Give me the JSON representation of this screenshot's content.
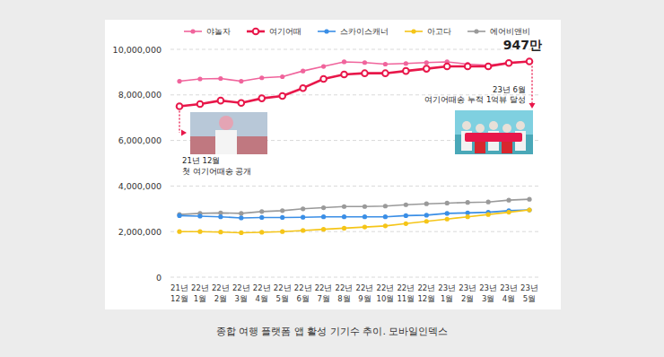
{
  "chart_data": {
    "type": "line",
    "title": "종합 여행 플랫폼 앱 활성 기기수 추이. 모바일인덱스",
    "categories": [
      "21년 12월",
      "22년 1월",
      "22년 2월",
      "22년 3월",
      "22년 4월",
      "22년 5월",
      "22년 6월",
      "22년 7월",
      "22년 8월",
      "22년 9월",
      "22년 10월",
      "22년 11월",
      "22년 12월",
      "23년 1월",
      "23년 2월",
      "23년 3월",
      "23년 4월",
      "23년 5월"
    ],
    "series": [
      {
        "name": "야놀자",
        "color": "#f0649c",
        "marker": "circle",
        "line_style": "solid",
        "values": [
          8600000,
          8700000,
          8720000,
          8600000,
          8750000,
          8800000,
          9050000,
          9250000,
          9450000,
          9420000,
          9350000,
          9380000,
          9420000,
          9450000,
          9350000,
          9300000,
          9420000,
          9470000
        ]
      },
      {
        "name": "여기어때",
        "color": "#e8174a",
        "marker": "circle-open",
        "line_style": "solid",
        "values": [
          7500000,
          7600000,
          7750000,
          7650000,
          7850000,
          7950000,
          8300000,
          8700000,
          8900000,
          8950000,
          8950000,
          9050000,
          9150000,
          9250000,
          9250000,
          9250000,
          9400000,
          9470000
        ]
      },
      {
        "name": "스카이스캐너",
        "color": "#3a8ee6",
        "marker": "circle",
        "line_style": "solid",
        "values": [
          2700000,
          2680000,
          2650000,
          2600000,
          2620000,
          2620000,
          2630000,
          2650000,
          2650000,
          2650000,
          2650000,
          2700000,
          2720000,
          2800000,
          2820000,
          2850000,
          2920000,
          2950000
        ]
      },
      {
        "name": "아고다",
        "color": "#f5c518",
        "marker": "circle",
        "line_style": "solid",
        "values": [
          2000000,
          2000000,
          1980000,
          1950000,
          1970000,
          2000000,
          2050000,
          2100000,
          2150000,
          2200000,
          2250000,
          2350000,
          2450000,
          2550000,
          2650000,
          2750000,
          2850000,
          2950000
        ]
      },
      {
        "name": "에어비앤비",
        "color": "#9a9a9a",
        "marker": "circle",
        "line_style": "solid",
        "values": [
          2750000,
          2800000,
          2820000,
          2800000,
          2880000,
          2920000,
          3000000,
          3050000,
          3100000,
          3100000,
          3120000,
          3180000,
          3220000,
          3250000,
          3280000,
          3300000,
          3380000,
          3420000
        ]
      }
    ],
    "ylim": [
      0,
      10000000
    ],
    "yticks": [
      0,
      {
        "value": 2000000,
        "label": "2,000,000"
      },
      {
        "value": 4000000,
        "label": "4,000,000"
      },
      {
        "value": 6000000,
        "label": "6,000,000"
      },
      {
        "value": 8000000,
        "label": "8,000,000"
      },
      {
        "value": 10000000,
        "label": "10,000,000"
      }
    ],
    "grid": true,
    "legend": "top",
    "annotations": [
      {
        "lines": [
          "947만"
        ]
      },
      {
        "lines": [
          "23년 6월",
          "여기어때송 누적 1억뷰 달성"
        ]
      },
      {
        "lines": [
          "21년 12월",
          "첫 여기어때송 공개"
        ]
      }
    ]
  }
}
